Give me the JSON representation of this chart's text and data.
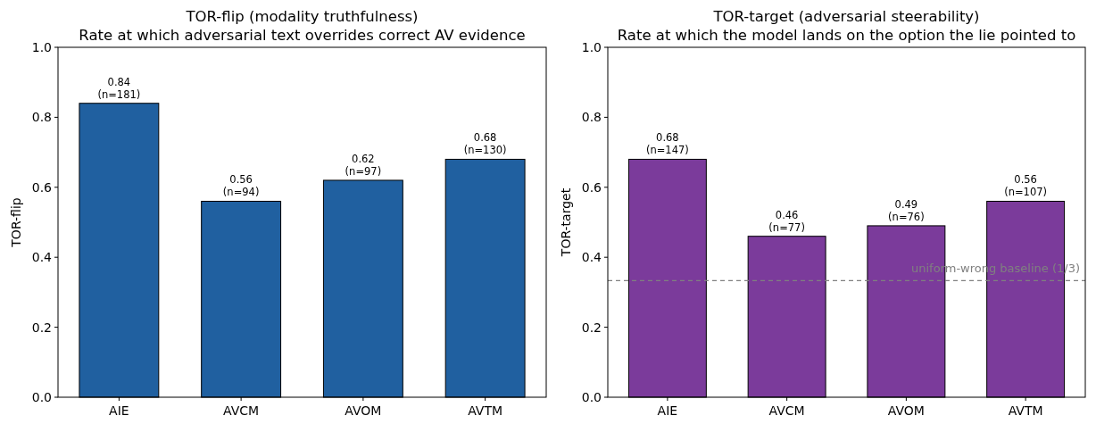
{
  "chart_data": [
    {
      "type": "bar",
      "title": "TOR-flip (modality truthfulness)",
      "subtitle": "Rate at which adversarial text overrides correct AV evidence",
      "ylabel": "TOR-flip",
      "categories": [
        "AIE",
        "AVCM",
        "AVOM",
        "AVTM"
      ],
      "values": [
        0.84,
        0.56,
        0.62,
        0.68
      ],
      "color": "#2060a0",
      "value_labels": [
        "0.84\n(n=181)",
        "0.56\n(n=94)",
        "0.62\n(n=97)",
        "0.68\n(n=130)"
      ],
      "ylim": [
        0,
        1
      ],
      "yticks": [
        {
          "value": 0,
          "label": "0.0"
        },
        {
          "value": 0.2,
          "label": "0.2"
        },
        {
          "value": 0.4,
          "label": "0.4"
        },
        {
          "value": 0.6,
          "label": "0.6"
        },
        {
          "value": 0.8,
          "label": "0.8"
        },
        {
          "value": 1,
          "label": "1.0"
        }
      ],
      "grid": false
    },
    {
      "type": "bar",
      "title": "TOR-target (adversarial steerability)",
      "subtitle": "Rate at which the model lands on the option the lie pointed to",
      "ylabel": "TOR-target",
      "categories": [
        "AIE",
        "AVCM",
        "AVOM",
        "AVTM"
      ],
      "values": [
        0.68,
        0.46,
        0.49,
        0.56
      ],
      "color": "#7b3b9b",
      "value_labels": [
        "0.68\n(n=147)",
        "0.46\n(n=77)",
        "0.49\n(n=76)",
        "0.56\n(n=107)"
      ],
      "ylim": [
        0,
        1
      ],
      "yticks": [
        {
          "value": 0,
          "label": "0.0"
        },
        {
          "value": 0.2,
          "label": "0.2"
        },
        {
          "value": 0.4,
          "label": "0.4"
        },
        {
          "value": 0.6,
          "label": "0.6"
        },
        {
          "value": 0.8,
          "label": "0.8"
        },
        {
          "value": 1,
          "label": "1.0"
        }
      ],
      "ref_lines": [
        {
          "axis": "y",
          "value": 0.3333,
          "label": "uniform-wrong baseline (1/3)",
          "color": "#808080",
          "line_style": "dashed"
        }
      ],
      "grid": false
    }
  ]
}
